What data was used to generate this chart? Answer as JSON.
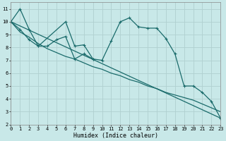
{
  "xlabel": "Humidex (Indice chaleur)",
  "bg_color": "#c8e8e8",
  "grid_color": "#b0d0d0",
  "line_color": "#1a6b6b",
  "xlim": [
    0,
    23
  ],
  "ylim": [
    2,
    11.5
  ],
  "xticks": [
    0,
    1,
    2,
    3,
    4,
    5,
    6,
    7,
    8,
    9,
    10,
    11,
    12,
    13,
    14,
    15,
    16,
    17,
    18,
    19,
    20,
    21,
    22,
    23
  ],
  "yticks": [
    2,
    3,
    4,
    5,
    6,
    7,
    8,
    9,
    10,
    11
  ],
  "series1_x": [
    0,
    1,
    2,
    3,
    6,
    7,
    8,
    9
  ],
  "series1_y": [
    10.0,
    11.0,
    9.4,
    8.1,
    10.0,
    8.1,
    8.2,
    7.1
  ],
  "series2_x": [
    0,
    23
  ],
  "series2_y": [
    10.0,
    2.5
  ],
  "series3_x": [
    0,
    1,
    2,
    3,
    4,
    5,
    6,
    7,
    8,
    9,
    10,
    11,
    12,
    13,
    14,
    15,
    16,
    17,
    18,
    19,
    20,
    21,
    22,
    23
  ],
  "series3_y": [
    10.0,
    9.4,
    8.6,
    8.1,
    8.1,
    8.6,
    8.85,
    7.1,
    7.5,
    7.1,
    7.0,
    8.5,
    10.0,
    10.3,
    9.6,
    9.5,
    9.5,
    8.7,
    7.5,
    5.0,
    5.0,
    4.5,
    3.8,
    2.5
  ],
  "series4_x": [
    0,
    1,
    2,
    3,
    4,
    5,
    6,
    7,
    8,
    9,
    10,
    11,
    12,
    13,
    14,
    15,
    16,
    17,
    18,
    19,
    20,
    21,
    22,
    23
  ],
  "series4_y": [
    10.0,
    9.2,
    8.8,
    8.3,
    7.9,
    7.6,
    7.3,
    7.1,
    6.8,
    6.5,
    6.3,
    6.0,
    5.8,
    5.5,
    5.3,
    5.0,
    4.8,
    4.5,
    4.3,
    4.1,
    3.9,
    3.6,
    3.3,
    3.0
  ]
}
